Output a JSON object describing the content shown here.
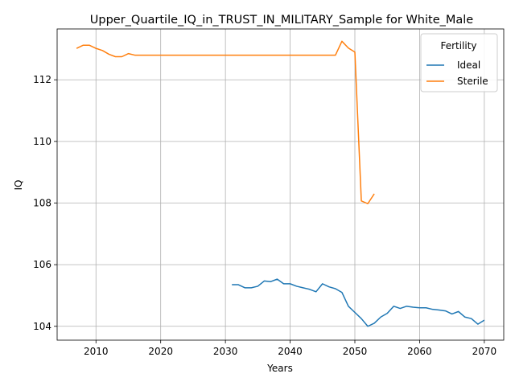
{
  "chart_data": {
    "type": "line",
    "title": "Upper_Quartile_IQ_in_TRUST_IN_MILITARY_Sample for White_Male",
    "xlabel": "Years",
    "ylabel": "IQ",
    "xlim": [
      2004,
      2073
    ],
    "ylim": [
      103.55,
      113.65
    ],
    "xticks": [
      2010,
      2020,
      2030,
      2040,
      2050,
      2060,
      2070
    ],
    "yticks": [
      104,
      106,
      108,
      110,
      112
    ],
    "grid": true,
    "legend": {
      "title": "Fertility",
      "placement": "top-right"
    },
    "series": [
      {
        "name": "Ideal",
        "color": "#1f77b4",
        "x": [
          2031,
          2032,
          2033,
          2034,
          2035,
          2036,
          2037,
          2038,
          2039,
          2040,
          2041,
          2042,
          2043,
          2044,
          2045,
          2046,
          2047,
          2048,
          2049,
          2050,
          2051,
          2052,
          2053,
          2054,
          2055,
          2056,
          2057,
          2058,
          2059,
          2060,
          2061,
          2062,
          2063,
          2064,
          2065,
          2066,
          2067,
          2068,
          2069,
          2070
        ],
        "y": [
          105.35,
          105.35,
          105.25,
          105.25,
          105.3,
          105.47,
          105.45,
          105.53,
          105.38,
          105.38,
          105.3,
          105.25,
          105.2,
          105.12,
          105.38,
          105.28,
          105.22,
          105.1,
          104.65,
          104.45,
          104.25,
          104.0,
          104.1,
          104.3,
          104.42,
          104.65,
          104.58,
          104.65,
          104.62,
          104.6,
          104.6,
          104.55,
          104.53,
          104.5,
          104.4,
          104.48,
          104.3,
          104.25,
          104.07,
          104.2
        ]
      },
      {
        "name": "Sterile",
        "color": "#ff7f0e",
        "x": [
          2007,
          2008,
          2009,
          2010,
          2011,
          2012,
          2013,
          2014,
          2015,
          2016,
          2017,
          2018,
          2019,
          2020,
          2021,
          2022,
          2023,
          2024,
          2025,
          2026,
          2027,
          2028,
          2029,
          2030,
          2031,
          2032,
          2033,
          2034,
          2035,
          2036,
          2037,
          2038,
          2039,
          2040,
          2041,
          2042,
          2043,
          2044,
          2045,
          2046,
          2047,
          2048,
          2049,
          2050,
          2051,
          2052,
          2053
        ],
        "y": [
          113.02,
          113.12,
          113.12,
          113.02,
          112.95,
          112.83,
          112.75,
          112.75,
          112.85,
          112.8,
          112.8,
          112.8,
          112.8,
          112.8,
          112.8,
          112.8,
          112.8,
          112.8,
          112.8,
          112.8,
          112.8,
          112.8,
          112.8,
          112.8,
          112.8,
          112.8,
          112.8,
          112.8,
          112.8,
          112.8,
          112.8,
          112.8,
          112.8,
          112.8,
          112.8,
          112.8,
          112.8,
          112.8,
          112.8,
          112.8,
          112.8,
          113.25,
          113.03,
          112.9,
          108.07,
          107.98,
          108.3
        ]
      }
    ]
  }
}
